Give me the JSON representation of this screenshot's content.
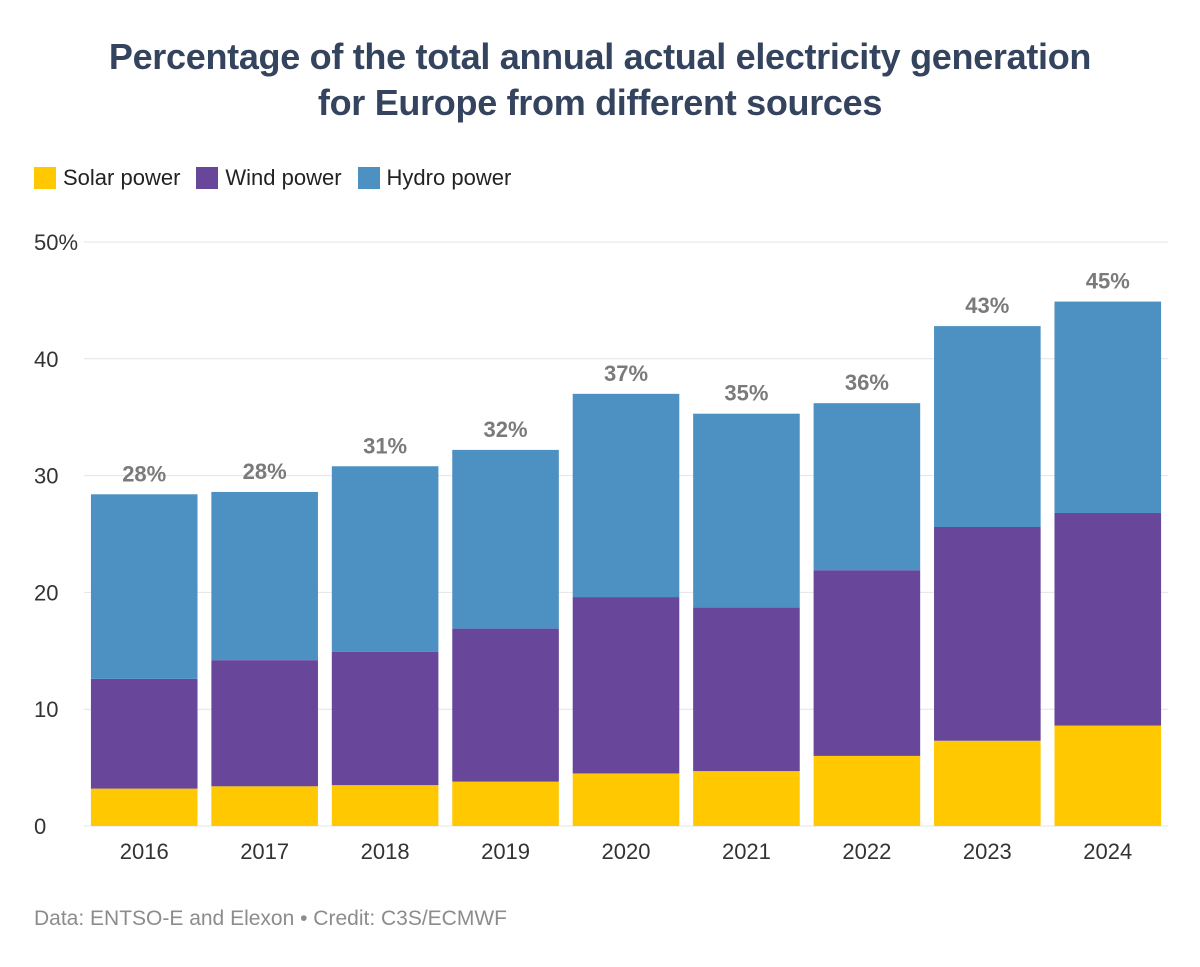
{
  "title_line1": "Percentage of the total annual actual electricity generation",
  "title_line2": "for Europe from different sources",
  "footer": "Data: ENTSO-E and Elexon • Credit: C3S/ECMWF",
  "chart_data": {
    "type": "bar",
    "stacked": true,
    "categories": [
      "2016",
      "2017",
      "2018",
      "2019",
      "2020",
      "2021",
      "2022",
      "2023",
      "2024"
    ],
    "series": [
      {
        "name": "Solar power",
        "color": "#ffc800",
        "values": [
          3.2,
          3.4,
          3.5,
          3.8,
          4.5,
          4.7,
          6.0,
          7.3,
          8.6
        ]
      },
      {
        "name": "Wind power",
        "color": "#684699",
        "values": [
          9.4,
          10.8,
          11.4,
          13.1,
          15.1,
          14.0,
          15.9,
          18.3,
          18.2
        ]
      },
      {
        "name": "Hydro power",
        "color": "#4d91c3",
        "values": [
          15.8,
          14.4,
          15.9,
          15.3,
          17.4,
          16.6,
          14.3,
          17.2,
          18.1
        ]
      }
    ],
    "totals_labels": [
      "28%",
      "28%",
      "31%",
      "32%",
      "37%",
      "35%",
      "36%",
      "43%",
      "45%"
    ],
    "ylim": [
      0,
      50
    ],
    "yticks": [
      "0",
      "10",
      "20",
      "30",
      "40",
      "50%"
    ],
    "grid": true,
    "legend_position": "top-left"
  }
}
